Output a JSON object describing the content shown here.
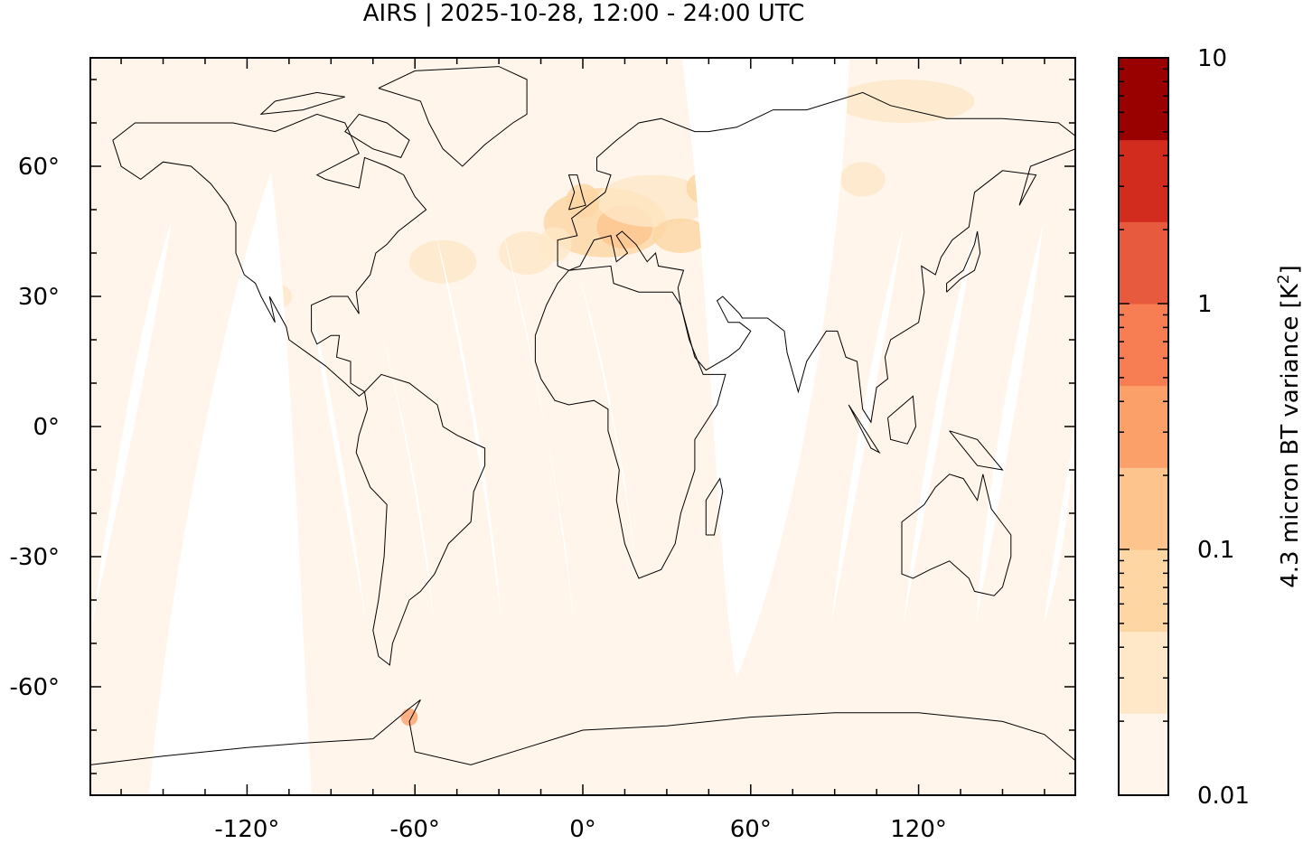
{
  "chart_data": {
    "type": "heatmap",
    "title": "AIRS | 2025-10-28, 12:00 - 24:00 UTC",
    "projection": "equirectangular",
    "xlim": [
      -176,
      176
    ],
    "ylim": [
      -85,
      85
    ],
    "x_ticks": [
      {
        "value": -120,
        "label": "-120°"
      },
      {
        "value": -60,
        "label": "-60°"
      },
      {
        "value": 0,
        "label": "0°"
      },
      {
        "value": 60,
        "label": "60°"
      },
      {
        "value": 120,
        "label": "120°"
      }
    ],
    "y_ticks": [
      {
        "value": 60,
        "label": "60°"
      },
      {
        "value": 30,
        "label": "30°"
      },
      {
        "value": 0,
        "label": "0°"
      },
      {
        "value": -30,
        "label": "-30°"
      },
      {
        "value": -60,
        "label": "-60°"
      }
    ],
    "colorbar": {
      "label": "4.3 micron BT variance [K",
      "label_superscript": "2",
      "label_suffix": "]",
      "scale": "log",
      "range": [
        0.01,
        10
      ],
      "ticks": [
        {
          "value": 10,
          "label": "10"
        },
        {
          "value": 1,
          "label": "1"
        },
        {
          "value": 0.1,
          "label": "0.1"
        },
        {
          "value": 0.01,
          "label": "0.01"
        }
      ],
      "colors": [
        "#fff5eb",
        "#fee8c8",
        "#fdd6a3",
        "#fdc48d",
        "#fca06a",
        "#f67e52",
        "#e85a3e",
        "#d12c1e",
        "#990000"
      ]
    },
    "background_value_color": "#fff5eb",
    "no_data_color": "#ffffff",
    "elevated_regions": [
      "Europe",
      "North Atlantic",
      "Siberia",
      "Antarctic Peninsula"
    ]
  }
}
